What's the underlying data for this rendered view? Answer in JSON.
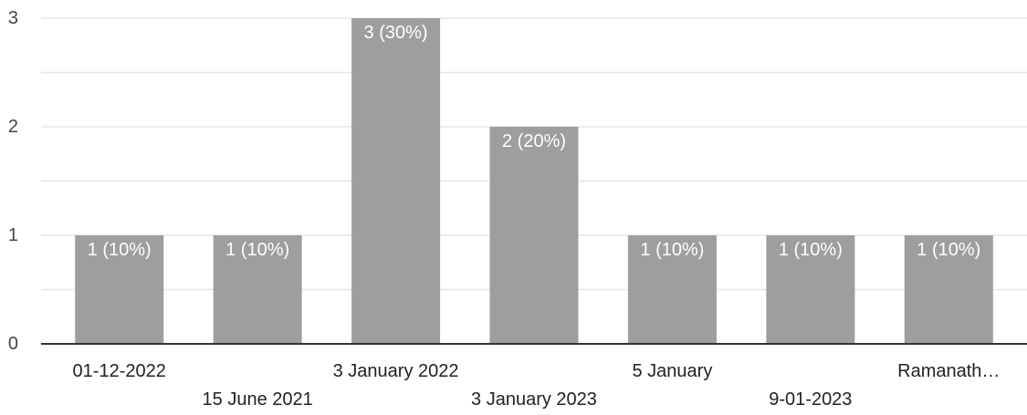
{
  "chart_data": {
    "type": "bar",
    "categories": [
      "01-12-2022",
      "15 June 2021",
      "3 January 2022",
      "3 January 2023",
      "5 January",
      "9-01-2023",
      "Ramanath…"
    ],
    "values": [
      1,
      1,
      3,
      2,
      1,
      1,
      1
    ],
    "data_labels": [
      "1 (10%)",
      "1 (10%)",
      "3 (30%)",
      "2 (20%)",
      "1 (10%)",
      "1 (10%)",
      "1 (10%)"
    ],
    "ylim": [
      0,
      3
    ],
    "yticks": [
      "0",
      "1",
      "2",
      "3"
    ],
    "grid": true,
    "bar_color": "#9e9e9e",
    "axis_color": "#333333",
    "grid_color": "#e6e6e6",
    "label_color": "#ffffff"
  }
}
